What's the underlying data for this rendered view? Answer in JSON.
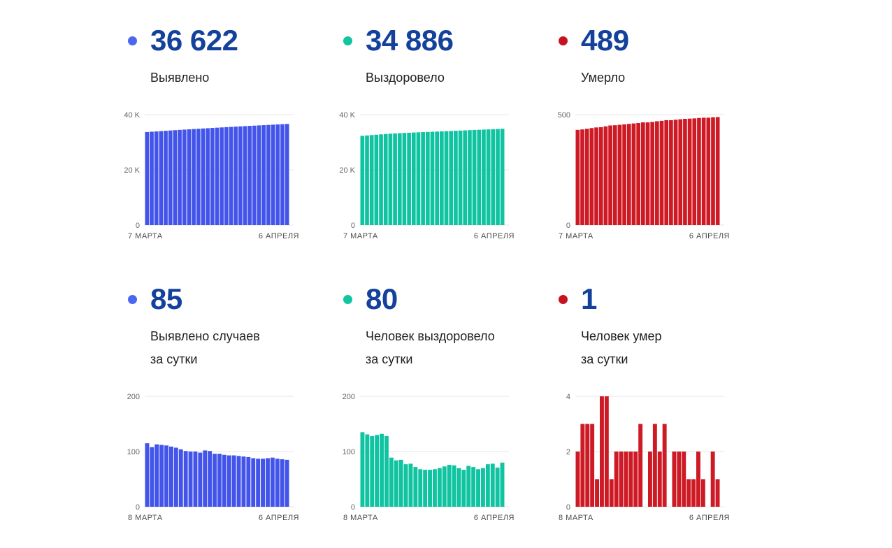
{
  "page": {
    "background": "#ffffff",
    "accent_value_color": "#14419b"
  },
  "chart_data": [
    {
      "id": "detected-total",
      "type": "bar",
      "stat_value": "36 622",
      "stat_label_line1": "Выявлено",
      "stat_label_line2": "",
      "dot_color": "#4a67f1",
      "bar_color": "#4254e9",
      "x_start_label": "7 МАРТА",
      "x_end_label": "6 АПРЕЛЯ",
      "ylim": [
        0,
        40000
      ],
      "yticks": [
        {
          "value": 0,
          "label": "0"
        },
        {
          "value": 20000,
          "label": "20 K"
        },
        {
          "value": 40000,
          "label": "40 K"
        }
      ],
      "values": [
        33699,
        33814,
        33922,
        34035,
        34147,
        34258,
        34367,
        34474,
        34578,
        34679,
        34779,
        34879,
        34977,
        35079,
        35180,
        35276,
        35372,
        35466,
        35559,
        35652,
        35744,
        35835,
        35925,
        36013,
        36100,
        36187,
        36275,
        36364,
        36451,
        36537,
        36622
      ]
    },
    {
      "id": "recovered-total",
      "type": "bar",
      "stat_value": "34 886",
      "stat_label_line1": "Выздоровело",
      "stat_label_line2": "",
      "dot_color": "#11c5a0",
      "bar_color": "#10c3a1",
      "x_start_label": "7 МАРТА",
      "x_end_label": "6 АПРЕЛЯ",
      "ylim": [
        0,
        40000
      ],
      "yticks": [
        {
          "value": 0,
          "label": "0"
        },
        {
          "value": 20000,
          "label": "20 K"
        },
        {
          "value": 40000,
          "label": "40 K"
        }
      ],
      "values": [
        32326,
        32461,
        32592,
        32720,
        32850,
        32982,
        33110,
        33199,
        33283,
        33368,
        33445,
        33523,
        33595,
        33663,
        33730,
        33797,
        33865,
        33935,
        34008,
        34084,
        34159,
        34229,
        34296,
        34370,
        34442,
        34510,
        34580,
        34657,
        34735,
        34806,
        34886
      ]
    },
    {
      "id": "died-total",
      "type": "bar",
      "stat_value": "489",
      "stat_label_line1": "Умерло",
      "stat_label_line2": "",
      "dot_color": "#c6131f",
      "bar_color": "#cd1a24",
      "x_start_label": "7 МАРТА",
      "x_end_label": "6 АПРЕЛЯ",
      "ylim": [
        0,
        500
      ],
      "yticks": [
        {
          "value": 0,
          "label": "0"
        },
        {
          "value": 500,
          "label": "500"
        }
      ],
      "values": [
        431,
        433,
        436,
        439,
        442,
        443,
        447,
        451,
        452,
        454,
        456,
        458,
        460,
        462,
        465,
        465,
        467,
        470,
        472,
        475,
        475,
        477,
        479,
        481,
        482,
        483,
        485,
        486,
        486,
        488,
        489
      ]
    },
    {
      "id": "detected-daily",
      "type": "bar",
      "stat_value": "85",
      "stat_label_line1": "Выявлено случаев",
      "stat_label_line2": "за сутки",
      "dot_color": "#4a67f1",
      "bar_color": "#4254e9",
      "x_start_label": "8 МАРТА",
      "x_end_label": "6 АПРЕЛЯ",
      "ylim": [
        0,
        200
      ],
      "yticks": [
        {
          "value": 0,
          "label": "0"
        },
        {
          "value": 100,
          "label": "100"
        },
        {
          "value": 200,
          "label": "200"
        }
      ],
      "values": [
        115,
        108,
        113,
        112,
        111,
        109,
        107,
        104,
        101,
        100,
        100,
        98,
        102,
        101,
        96,
        96,
        94,
        93,
        93,
        92,
        91,
        90,
        88,
        87,
        87,
        88,
        89,
        87,
        86,
        85
      ]
    },
    {
      "id": "recovered-daily",
      "type": "bar",
      "stat_value": "80",
      "stat_label_line1": "Человек выздоровело",
      "stat_label_line2": "за сутки",
      "dot_color": "#11c5a0",
      "bar_color": "#10c3a1",
      "x_start_label": "8 МАРТА",
      "x_end_label": "6 АПРЕЛЯ",
      "ylim": [
        0,
        200
      ],
      "yticks": [
        {
          "value": 0,
          "label": "0"
        },
        {
          "value": 100,
          "label": "100"
        },
        {
          "value": 200,
          "label": "200"
        }
      ],
      "values": [
        135,
        131,
        128,
        130,
        132,
        128,
        89,
        84,
        85,
        77,
        78,
        72,
        68,
        67,
        67,
        68,
        70,
        73,
        76,
        75,
        70,
        67,
        74,
        72,
        68,
        70,
        77,
        78,
        71,
        80
      ]
    },
    {
      "id": "died-daily",
      "type": "bar",
      "stat_value": "1",
      "stat_label_line1": "Человек умер",
      "stat_label_line2": "за сутки",
      "dot_color": "#c6131f",
      "bar_color": "#cd1a24",
      "x_start_label": "8 МАРТА",
      "x_end_label": "6 АПРЕЛЯ",
      "ylim": [
        0,
        4
      ],
      "yticks": [
        {
          "value": 0,
          "label": "0"
        },
        {
          "value": 2,
          "label": "2"
        },
        {
          "value": 4,
          "label": "4"
        }
      ],
      "values": [
        2,
        3,
        3,
        3,
        1,
        4,
        4,
        1,
        2,
        2,
        2,
        2,
        2,
        3,
        0,
        2,
        3,
        2,
        3,
        0,
        2,
        2,
        2,
        1,
        1,
        2,
        1,
        0,
        2,
        1
      ]
    }
  ]
}
